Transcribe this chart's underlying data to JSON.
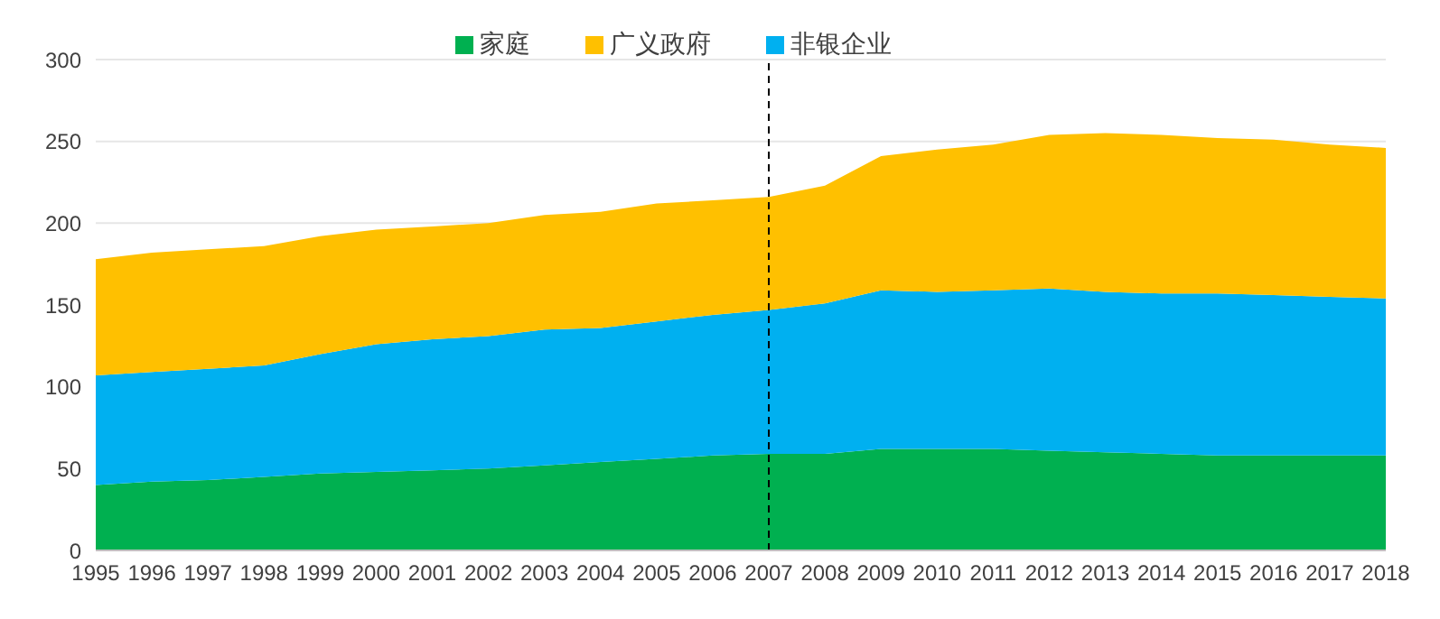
{
  "chart_data": {
    "type": "area",
    "stacked": true,
    "categories": [
      "1995",
      "1996",
      "1997",
      "1998",
      "1999",
      "2000",
      "2001",
      "2002",
      "2003",
      "2004",
      "2005",
      "2006",
      "2007",
      "2008",
      "2009",
      "2010",
      "2011",
      "2012",
      "2013",
      "2014",
      "2015",
      "2016",
      "2017",
      "2018"
    ],
    "series": [
      {
        "name": "家庭",
        "color": "#00b050",
        "values": [
          40,
          42,
          43,
          45,
          47,
          48,
          49,
          50,
          52,
          54,
          56,
          58,
          59,
          59,
          62,
          62,
          62,
          61,
          60,
          59,
          58,
          58,
          58,
          58
        ]
      },
      {
        "name": "非银企业",
        "color": "#00b0f0",
        "values": [
          67,
          67,
          68,
          68,
          73,
          78,
          80,
          81,
          83,
          82,
          84,
          86,
          88,
          92,
          97,
          96,
          97,
          99,
          98,
          98,
          99,
          98,
          97,
          96
        ]
      },
      {
        "name": "广义政府",
        "color": "#ffc000",
        "values": [
          71,
          73,
          73,
          73,
          72,
          70,
          69,
          69,
          70,
          71,
          72,
          70,
          69,
          72,
          82,
          87,
          89,
          94,
          97,
          97,
          95,
          95,
          93,
          92
        ]
      }
    ],
    "ylim": [
      0,
      300
    ],
    "yticks": [
      0,
      50,
      100,
      150,
      200,
      250,
      300
    ],
    "grid": "y",
    "legend": "top",
    "ref_lines": [
      {
        "axis": "x",
        "value": "2007",
        "color": "#000000",
        "line_style": "dashed"
      }
    ]
  }
}
